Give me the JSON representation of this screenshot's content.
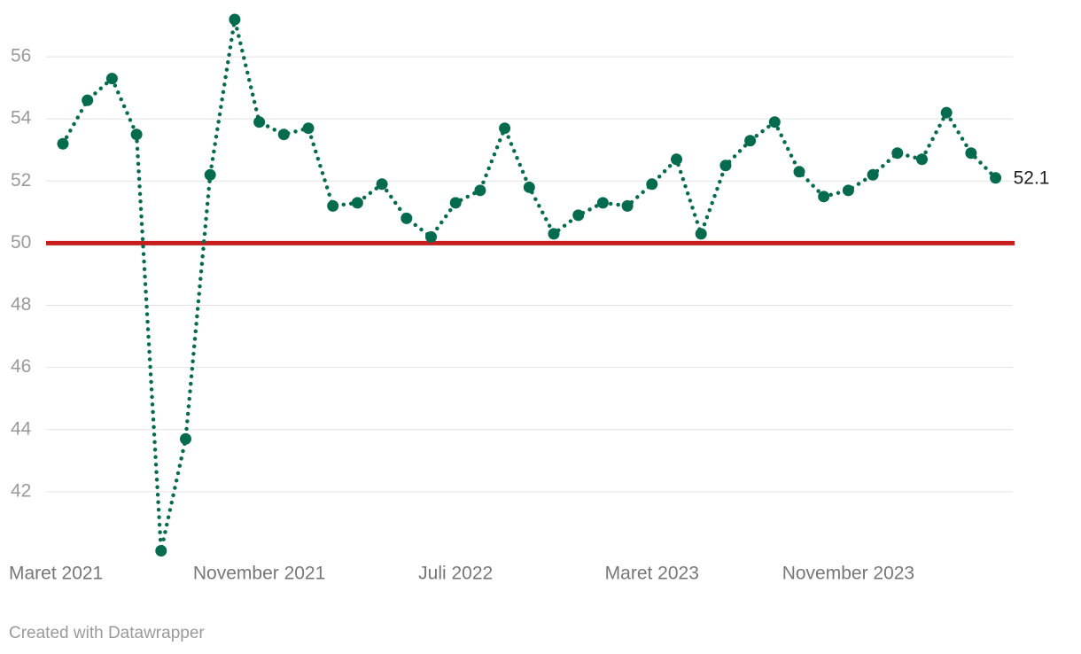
{
  "chart_data": {
    "type": "line",
    "categories": [
      "Maret 2021",
      null,
      null,
      null,
      null,
      null,
      null,
      null,
      "November 2021",
      null,
      null,
      null,
      null,
      null,
      null,
      null,
      "Juli 2022",
      null,
      null,
      null,
      null,
      null,
      null,
      null,
      "Maret 2023",
      null,
      null,
      null,
      null,
      null,
      null,
      null,
      "November 2023",
      null,
      null,
      null,
      null,
      null,
      null
    ],
    "series": [
      {
        "color": "#056b4f",
        "values": [
          53.2,
          54.6,
          55.3,
          53.5,
          40.1,
          43.7,
          52.2,
          57.2,
          53.9,
          53.5,
          53.7,
          51.2,
          51.3,
          51.9,
          50.8,
          50.2,
          51.3,
          51.7,
          53.7,
          51.8,
          50.3,
          50.9,
          51.3,
          51.2,
          51.9,
          52.7,
          50.3,
          52.5,
          53.3,
          53.9,
          52.3,
          51.5,
          51.7,
          52.2,
          52.9,
          52.7,
          54.2,
          52.9,
          52.1
        ]
      }
    ],
    "ylim": [
      40,
      57.2
    ],
    "yticks": [
      42,
      44,
      46,
      48,
      50,
      52,
      54,
      56
    ],
    "grid": true,
    "reference_line": {
      "value": 50,
      "color": "#c71e1d"
    },
    "credit": "Created with Datawrapper"
  }
}
